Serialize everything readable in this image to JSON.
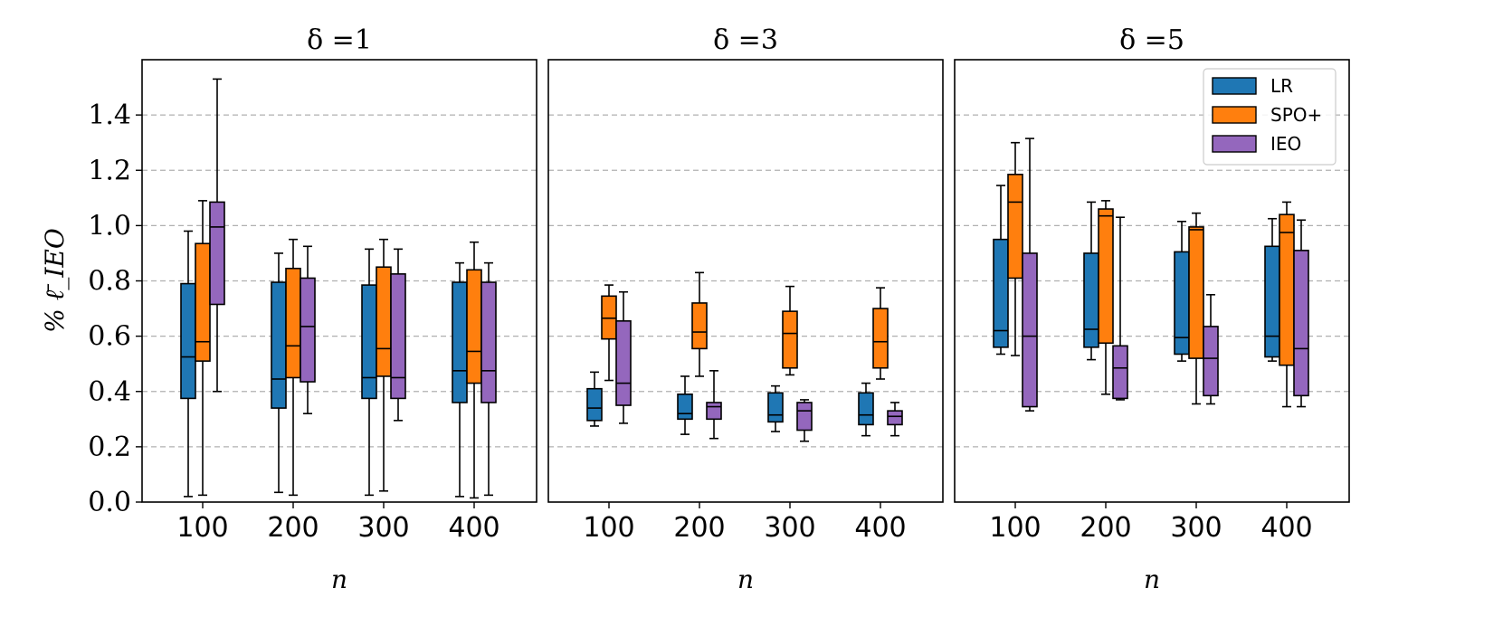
{
  "chart_data": {
    "type": "box",
    "ylabel": "% ℓ̄_IEO",
    "xlabel": "n",
    "ylim": [
      0.0,
      1.6
    ],
    "yticks": [
      0.0,
      0.2,
      0.4,
      0.6,
      0.8,
      1.0,
      1.2,
      1.4
    ],
    "ytick_labels": [
      "0.0",
      "0.2",
      "0.4",
      "0.6",
      "0.8",
      "1.0",
      "1.2",
      "1.4"
    ],
    "categories": [
      "100",
      "200",
      "300",
      "400"
    ],
    "grid": "y-dashed",
    "legend_position": "top-right",
    "series_names": [
      "LR",
      "SPO+",
      "IEO"
    ],
    "series_colors": [
      "#1f77b4",
      "#ff7f0e",
      "#9467bd"
    ],
    "panels": [
      {
        "title": "δ =1",
        "series": [
          {
            "name": "LR",
            "boxes": [
              {
                "min": 0.02,
                "q1": 0.375,
                "median": 0.525,
                "q3": 0.79,
                "max": 0.98
              },
              {
                "min": 0.035,
                "q1": 0.34,
                "median": 0.445,
                "q3": 0.795,
                "max": 0.9
              },
              {
                "min": 0.025,
                "q1": 0.375,
                "median": 0.45,
                "q3": 0.785,
                "max": 0.915
              },
              {
                "min": 0.02,
                "q1": 0.36,
                "median": 0.475,
                "q3": 0.795,
                "max": 0.865
              }
            ]
          },
          {
            "name": "SPO+",
            "boxes": [
              {
                "min": 0.025,
                "q1": 0.51,
                "median": 0.58,
                "q3": 0.935,
                "max": 1.09
              },
              {
                "min": 0.025,
                "q1": 0.45,
                "median": 0.565,
                "q3": 0.845,
                "max": 0.95
              },
              {
                "min": 0.04,
                "q1": 0.455,
                "median": 0.555,
                "q3": 0.85,
                "max": 0.95
              },
              {
                "min": 0.015,
                "q1": 0.43,
                "median": 0.545,
                "q3": 0.84,
                "max": 0.94
              }
            ]
          },
          {
            "name": "IEO",
            "boxes": [
              {
                "min": 0.4,
                "q1": 0.715,
                "median": 0.995,
                "q3": 1.085,
                "max": 1.53
              },
              {
                "min": 0.32,
                "q1": 0.435,
                "median": 0.635,
                "q3": 0.81,
                "max": 0.925
              },
              {
                "min": 0.295,
                "q1": 0.375,
                "median": 0.45,
                "q3": 0.825,
                "max": 0.915
              },
              {
                "min": 0.025,
                "q1": 0.36,
                "median": 0.475,
                "q3": 0.795,
                "max": 0.865
              }
            ]
          }
        ]
      },
      {
        "title": "δ =3",
        "series": [
          {
            "name": "LR",
            "boxes": [
              {
                "min": 0.275,
                "q1": 0.295,
                "median": 0.34,
                "q3": 0.41,
                "max": 0.47
              },
              {
                "min": 0.245,
                "q1": 0.3,
                "median": 0.32,
                "q3": 0.39,
                "max": 0.455
              },
              {
                "min": 0.255,
                "q1": 0.29,
                "median": 0.315,
                "q3": 0.395,
                "max": 0.42
              },
              {
                "min": 0.24,
                "q1": 0.28,
                "median": 0.315,
                "q3": 0.395,
                "max": 0.43
              }
            ]
          },
          {
            "name": "SPO+",
            "boxes": [
              {
                "min": 0.44,
                "q1": 0.59,
                "median": 0.665,
                "q3": 0.745,
                "max": 0.785
              },
              {
                "min": 0.455,
                "q1": 0.555,
                "median": 0.615,
                "q3": 0.72,
                "max": 0.83
              },
              {
                "min": 0.46,
                "q1": 0.485,
                "median": 0.61,
                "q3": 0.69,
                "max": 0.78
              },
              {
                "min": 0.445,
                "q1": 0.485,
                "median": 0.58,
                "q3": 0.7,
                "max": 0.775
              }
            ]
          },
          {
            "name": "IEO",
            "boxes": [
              {
                "min": 0.285,
                "q1": 0.35,
                "median": 0.43,
                "q3": 0.655,
                "max": 0.76
              },
              {
                "min": 0.23,
                "q1": 0.3,
                "median": 0.345,
                "q3": 0.36,
                "max": 0.475
              },
              {
                "min": 0.22,
                "q1": 0.26,
                "median": 0.33,
                "q3": 0.36,
                "max": 0.37
              },
              {
                "min": 0.24,
                "q1": 0.28,
                "median": 0.31,
                "q3": 0.33,
                "max": 0.36
              }
            ]
          }
        ]
      },
      {
        "title": "δ =5",
        "series": [
          {
            "name": "LR",
            "boxes": [
              {
                "min": 0.535,
                "q1": 0.56,
                "median": 0.62,
                "q3": 0.95,
                "max": 1.145
              },
              {
                "min": 0.515,
                "q1": 0.56,
                "median": 0.625,
                "q3": 0.9,
                "max": 1.085
              },
              {
                "min": 0.51,
                "q1": 0.535,
                "median": 0.595,
                "q3": 0.905,
                "max": 1.015
              },
              {
                "min": 0.51,
                "q1": 0.525,
                "median": 0.6,
                "q3": 0.925,
                "max": 1.025
              }
            ]
          },
          {
            "name": "SPO+",
            "boxes": [
              {
                "min": 0.53,
                "q1": 0.81,
                "median": 1.085,
                "q3": 1.185,
                "max": 1.3
              },
              {
                "min": 0.39,
                "q1": 0.575,
                "median": 1.035,
                "q3": 1.06,
                "max": 1.09
              },
              {
                "min": 0.355,
                "q1": 0.52,
                "median": 0.985,
                "q3": 0.995,
                "max": 1.045
              },
              {
                "min": 0.345,
                "q1": 0.495,
                "median": 0.975,
                "q3": 1.04,
                "max": 1.085
              }
            ]
          },
          {
            "name": "IEO",
            "boxes": [
              {
                "min": 0.33,
                "q1": 0.345,
                "median": 0.6,
                "q3": 0.9,
                "max": 1.315
              },
              {
                "min": 0.37,
                "q1": 0.375,
                "median": 0.485,
                "q3": 0.565,
                "max": 1.03
              },
              {
                "min": 0.355,
                "q1": 0.385,
                "median": 0.52,
                "q3": 0.635,
                "max": 0.75
              },
              {
                "min": 0.345,
                "q1": 0.385,
                "median": 0.555,
                "q3": 0.91,
                "max": 1.02
              }
            ]
          }
        ]
      }
    ]
  }
}
